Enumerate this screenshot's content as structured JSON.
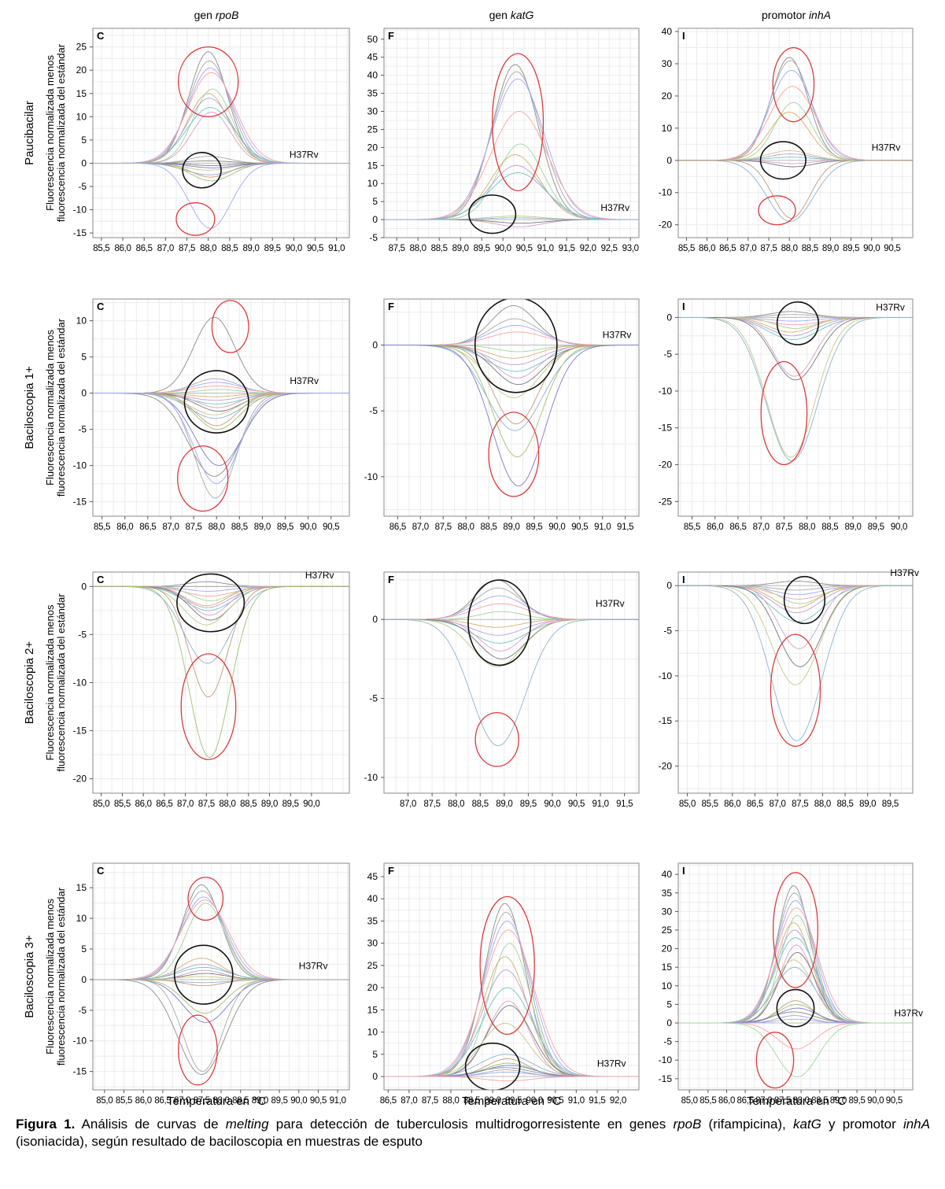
{
  "column_headers": [
    {
      "prefix": "gen ",
      "italic": "rpoB"
    },
    {
      "prefix": "gen ",
      "italic": "katG"
    },
    {
      "prefix": "promotor ",
      "italic": "inhA"
    }
  ],
  "row_headers": [
    "Paucibacilar",
    "Baciloscopia 1+",
    "Baciloscopia 2+",
    "Baciloscopia 3+"
  ],
  "ylabel_line1": "Fluorescencia normalizada menos",
  "ylabel_line2": "fluorescencia normalizada del estándar",
  "xlabel": "Temperatura en °C",
  "reference_label": "H37Rv",
  "caption": {
    "bold": "Figura 1.",
    "parts": [
      {
        "t": " Análisis de curvas de ",
        "i": false
      },
      {
        "t": "melting",
        "i": true
      },
      {
        "t": " para detección de tuberculosis multidrogorresistente en genes ",
        "i": false
      },
      {
        "t": "rpoB",
        "i": true
      },
      {
        "t": " (rifampicina), ",
        "i": false
      },
      {
        "t": "katG",
        "i": true
      },
      {
        "t": " y promotor ",
        "i": false
      },
      {
        "t": "inhA",
        "i": true
      },
      {
        "t": " (isoniacida), según resultado de baciloscopia en muestras de esputo",
        "i": false
      }
    ]
  },
  "colors": {
    "red_circle": "#e0393a",
    "black_circle": "#111111",
    "grid": "#ececec",
    "frame": "#888888"
  },
  "chart_data": [
    {
      "type": "line",
      "panel_letter": "C",
      "row": "Paucibacilar",
      "column": "gen rpoB",
      "xlim": [
        85.3,
        91.3
      ],
      "ylim": [
        -16,
        29
      ],
      "xticks": [
        "85,5",
        "86,0",
        "86,5",
        "87,0",
        "87,5",
        "88,0",
        "88,5",
        "89,0",
        "89,5",
        "90,0",
        "90,5",
        "91,0"
      ],
      "yticks": [
        25,
        20,
        15,
        10,
        5,
        0,
        -5,
        -10,
        -15
      ],
      "center": 88.05,
      "width": 0.5,
      "peak_heights": [
        24,
        22,
        20.5,
        19.5,
        16,
        15,
        14,
        12,
        11,
        -0.5,
        -1.5,
        -2.5,
        -3,
        -3.8,
        -1,
        0.5,
        1.5,
        -14
      ],
      "reference": {
        "x": 89.9,
        "y": 0.5
      },
      "circles": [
        {
          "color": "red",
          "cx": 88.0,
          "cy": 17.5,
          "rx": 0.7,
          "ry": 7.5
        },
        {
          "color": "black",
          "cx": 87.85,
          "cy": -1.5,
          "rx": 0.45,
          "ry": 3.8
        },
        {
          "color": "red",
          "cx": 87.7,
          "cy": -12,
          "rx": 0.45,
          "ry": 3.5
        }
      ]
    },
    {
      "type": "line",
      "panel_letter": "F",
      "row": "Paucibacilar",
      "column": "gen katG",
      "xlim": [
        87.2,
        93.2
      ],
      "ylim": [
        -5,
        53
      ],
      "xticks": [
        "87,5",
        "88,0",
        "88,5",
        "89,0",
        "89,5",
        "90,0",
        "90,5",
        "91,0",
        "91,5",
        "92,0",
        "92,5",
        "93,0"
      ],
      "yticks": [
        50,
        45,
        40,
        35,
        30,
        25,
        20,
        15,
        10,
        5,
        0,
        -5
      ],
      "center": 90.35,
      "width": 0.6,
      "peak_heights": [
        43,
        41,
        39,
        30,
        21,
        18,
        15,
        13,
        -2,
        -1,
        1,
        0.5
      ],
      "reference": {
        "x": 92.3,
        "y": 1.5
      },
      "circles": [
        {
          "color": "red",
          "cx": 90.35,
          "cy": 27,
          "rx": 0.6,
          "ry": 19
        },
        {
          "color": "black",
          "cx": 89.75,
          "cy": 1.5,
          "rx": 0.55,
          "ry": 5.3
        }
      ]
    },
    {
      "type": "line",
      "panel_letter": "I",
      "row": "Paucibacilar",
      "column": "promotor inhA",
      "xlim": [
        85.3,
        91.0
      ],
      "ylim": [
        -24,
        41
      ],
      "xticks": [
        "85,5",
        "86,0",
        "86,5",
        "87,0",
        "87,5",
        "88,0",
        "88,5",
        "89,0",
        "89,5",
        "90,0",
        "90,5"
      ],
      "yticks": [
        40,
        30,
        20,
        10,
        0,
        -10,
        -20
      ],
      "center": 88.05,
      "width": 0.5,
      "peak_heights": [
        32,
        31,
        28,
        23,
        18,
        15,
        2,
        1,
        -1,
        -2,
        3,
        -19,
        -18
      ],
      "reference": {
        "x": 90.0,
        "y": 2
      },
      "circles": [
        {
          "color": "red",
          "cx": 88.1,
          "cy": 23.5,
          "rx": 0.5,
          "ry": 11.5
        },
        {
          "color": "black",
          "cx": 87.85,
          "cy": 0,
          "rx": 0.55,
          "ry": 5.8
        },
        {
          "color": "red",
          "cx": 87.7,
          "cy": -15.5,
          "rx": 0.45,
          "ry": 4.5
        }
      ]
    },
    {
      "type": "line",
      "panel_letter": "C",
      "row": "Baciloscopia 1+",
      "column": "gen rpoB",
      "xlim": [
        85.3,
        90.9
      ],
      "ylim": [
        -17,
        13
      ],
      "xticks": [
        "85,5",
        "86,0",
        "86,5",
        "87,0",
        "87,5",
        "88,0",
        "88,5",
        "89,0",
        "89,5",
        "90,0",
        "90,5"
      ],
      "yticks": [
        10,
        5,
        0,
        -5,
        -10,
        -15
      ],
      "center": 88.0,
      "width": 0.5,
      "peak_heights": [
        10.5,
        2,
        1.5,
        1,
        0.5,
        -0.5,
        -1,
        -1.5,
        -2,
        -2.5,
        -3,
        -3.5,
        -4.5,
        -5,
        -10,
        -11.5,
        -14.5,
        -12.5
      ],
      "reference": {
        "x": 89.6,
        "y": 0.8
      },
      "circles": [
        {
          "color": "red",
          "cx": 88.3,
          "cy": 9.2,
          "rx": 0.4,
          "ry": 3.6
        },
        {
          "color": "black",
          "cx": 88.0,
          "cy": -1.2,
          "rx": 0.7,
          "ry": 4.3
        },
        {
          "color": "red",
          "cx": 87.7,
          "cy": -11.8,
          "rx": 0.55,
          "ry": 4.5
        }
      ]
    },
    {
      "type": "line",
      "panel_letter": "F",
      "row": "Baciloscopia 1+",
      "column": "gen katG",
      "xlim": [
        86.2,
        91.8
      ],
      "ylim": [
        -13,
        3.5
      ],
      "xticks": [
        "86,5",
        "87,0",
        "87,5",
        "88,0",
        "88,5",
        "89,0",
        "89,5",
        "90,0",
        "90,5",
        "91,0",
        "91,5"
      ],
      "yticks": [
        0,
        -5,
        -10
      ],
      "center": 89.1,
      "width": 0.55,
      "peak_heights": [
        3,
        2,
        1.5,
        1,
        -0.5,
        -1,
        -1.5,
        -2,
        -2.5,
        -3,
        -4,
        -6.5,
        -6,
        -8.5,
        -10.7
      ],
      "reference": {
        "x": 91.0,
        "y": 0.3
      },
      "circles": [
        {
          "color": "black",
          "cx": 89.1,
          "cy": 0,
          "rx": 0.9,
          "ry": 3.6
        },
        {
          "color": "red",
          "cx": 89.05,
          "cy": -8.3,
          "rx": 0.55,
          "ry": 3.2
        }
      ]
    },
    {
      "type": "line",
      "panel_letter": "I",
      "row": "Baciloscopia 1+",
      "column": "promotor inhA",
      "xlim": [
        85.2,
        90.3
      ],
      "ylim": [
        -27,
        2.5
      ],
      "xticks": [
        "85,5",
        "86,0",
        "86,5",
        "87,0",
        "87,5",
        "88,0",
        "88,5",
        "89,0",
        "89,5",
        "90,0"
      ],
      "yticks": [
        0,
        -5,
        -10,
        -15,
        -20,
        -25
      ],
      "center": 87.7,
      "width": 0.5,
      "peak_heights": [
        0.8,
        0.4,
        -0.5,
        -1,
        -1.5,
        -2,
        -2.5,
        -3,
        -8,
        -8.5,
        -19,
        -19.5
      ],
      "reference": {
        "x": 89.5,
        "y": 0.5
      },
      "circles": [
        {
          "color": "black",
          "cx": 87.8,
          "cy": -0.8,
          "rx": 0.45,
          "ry": 2.9
        },
        {
          "color": "red",
          "cx": 87.5,
          "cy": -13,
          "rx": 0.5,
          "ry": 7
        }
      ]
    },
    {
      "type": "line",
      "panel_letter": "C",
      "row": "Baciloscopia 2+",
      "column": "gen rpoB",
      "xlim": [
        84.8,
        90.9
      ],
      "ylim": [
        -21.5,
        1.5
      ],
      "xticks": [
        "85,0",
        "85,5",
        "86,0",
        "86,5",
        "87,0",
        "87,5",
        "88,0",
        "88,5",
        "89,0",
        "89,5",
        "90,0"
      ],
      "yticks": [
        0,
        -5,
        -10,
        -15,
        -20
      ],
      "center": 87.55,
      "width": 0.5,
      "peak_heights": [
        0.5,
        0,
        -0.5,
        -1,
        -1.5,
        -2,
        -2.2,
        -2.5,
        -3,
        -3.5,
        -4,
        -8,
        -11.5,
        -17.8
      ],
      "reference": {
        "x": 89.85,
        "y": 0.5
      },
      "circles": [
        {
          "color": "black",
          "cx": 87.6,
          "cy": -1.7,
          "rx": 0.8,
          "ry": 3
        },
        {
          "color": "red",
          "cx": 87.55,
          "cy": -12.5,
          "rx": 0.65,
          "ry": 5.5
        }
      ]
    },
    {
      "type": "line",
      "panel_letter": "F",
      "row": "Baciloscopia 2+",
      "column": "gen katG",
      "xlim": [
        86.5,
        91.8
      ],
      "ylim": [
        -11,
        3
      ],
      "xticks": [
        "87,0",
        "87,5",
        "88,0",
        "88,5",
        "89,0",
        "89,5",
        "90,0",
        "90,5",
        "91,0",
        "91,5"
      ],
      "yticks": [
        0,
        -5,
        -10
      ],
      "center": 88.9,
      "width": 0.5,
      "peak_heights": [
        2.5,
        2,
        1.5,
        1,
        0.5,
        -0.5,
        -1,
        -1.5,
        -2,
        -2.5,
        -3,
        -8
      ],
      "reference": {
        "x": 90.9,
        "y": 0.6
      },
      "circles": [
        {
          "color": "black",
          "cx": 88.9,
          "cy": -0.2,
          "rx": 0.65,
          "ry": 2.7
        },
        {
          "color": "red",
          "cx": 88.85,
          "cy": -7.6,
          "rx": 0.45,
          "ry": 1.7
        }
      ]
    },
    {
      "type": "line",
      "panel_letter": "I",
      "row": "Baciloscopia 2+",
      "column": "promotor inhA",
      "xlim": [
        84.8,
        90.0
      ],
      "ylim": [
        -23,
        1.5
      ],
      "xticks": [
        "85,0",
        "85,5",
        "86,0",
        "86,5",
        "87,0",
        "87,5",
        "88,0",
        "88,5",
        "89,0",
        "89,5"
      ],
      "yticks": [
        0,
        -5,
        -10,
        -15,
        -20
      ],
      "center": 87.45,
      "width": 0.5,
      "peak_heights": [
        0.5,
        -0.5,
        -1,
        -1.5,
        -2,
        -2.5,
        -3,
        -4,
        -7,
        -9,
        -11,
        -17.2
      ],
      "reference": {
        "x": 89.5,
        "y": 0.7
      },
      "circles": [
        {
          "color": "black",
          "cx": 87.6,
          "cy": -1.6,
          "rx": 0.45,
          "ry": 2.6
        },
        {
          "color": "red",
          "cx": 87.4,
          "cy": -11.6,
          "rx": 0.55,
          "ry": 6.2
        }
      ]
    },
    {
      "type": "line",
      "panel_letter": "C",
      "row": "Baciloscopia 3+",
      "column": "gen rpoB",
      "xlim": [
        84.7,
        91.3
      ],
      "ylim": [
        -18,
        19
      ],
      "xticks": [
        "85,0",
        "85,5",
        "86,0",
        "86,5",
        "87,0",
        "87,5",
        "88,0",
        "88,5",
        "89,0",
        "89,5",
        "90,0",
        "90,5",
        "91,0"
      ],
      "yticks": [
        15,
        10,
        5,
        0,
        -5,
        -10,
        -15
      ],
      "center": 87.55,
      "width": 0.55,
      "peak_heights": [
        15.5,
        14.5,
        13.5,
        13,
        12.5,
        3.5,
        2.5,
        2,
        1.5,
        1,
        0.5,
        -0.5,
        -1,
        -5.5,
        -7,
        -15.5,
        -15
      ],
      "reference": {
        "x": 90.0,
        "y": 1.2
      },
      "circles": [
        {
          "color": "red",
          "cx": 87.6,
          "cy": 13.2,
          "rx": 0.45,
          "ry": 3.5
        },
        {
          "color": "black",
          "cx": 87.55,
          "cy": 0.8,
          "rx": 0.75,
          "ry": 4.8
        },
        {
          "color": "red",
          "cx": 87.4,
          "cy": -11.5,
          "rx": 0.5,
          "ry": 5.7
        }
      ]
    },
    {
      "type": "line",
      "panel_letter": "F",
      "row": "Baciloscopia 3+",
      "column": "gen katG",
      "xlim": [
        86.4,
        92.5
      ],
      "ylim": [
        -3,
        48
      ],
      "xticks": [
        "86,5",
        "87,0",
        "87,5",
        "88,0",
        "88,5",
        "89,0",
        "89,5",
        "90,0",
        "90,5",
        "91,0",
        "91,5",
        "92,0"
      ],
      "yticks": [
        45,
        40,
        35,
        30,
        25,
        20,
        15,
        10,
        5,
        0
      ],
      "center": 89.35,
      "width": 0.55,
      "peak_heights": [
        39,
        37,
        35,
        33,
        30,
        27,
        24,
        20,
        17,
        16,
        12,
        5,
        4,
        3,
        2.5,
        2,
        1.5,
        1,
        -1
      ],
      "reference": {
        "x": 91.5,
        "y": 1.5
      },
      "circles": [
        {
          "color": "red",
          "cx": 89.35,
          "cy": 25,
          "rx": 0.65,
          "ry": 15.5
        },
        {
          "color": "black",
          "cx": 89.0,
          "cy": 2.2,
          "rx": 0.65,
          "ry": 5.3
        }
      ]
    },
    {
      "type": "line",
      "panel_letter": "I",
      "row": "Baciloscopia 3+",
      "column": "promotor inhA",
      "xlim": [
        84.7,
        91.0
      ],
      "ylim": [
        -18,
        43
      ],
      "xticks": [
        "85,0",
        "85,5",
        "86,0",
        "86,5",
        "87,0",
        "87,5",
        "88,0",
        "88,5",
        "89,0",
        "89,5",
        "90,0",
        "90,5"
      ],
      "yticks": [
        40,
        35,
        30,
        25,
        20,
        15,
        10,
        5,
        0,
        -5,
        -10,
        -15
      ],
      "center": 87.85,
      "width": 0.5,
      "peak_heights": [
        37,
        35,
        33,
        31,
        29,
        27,
        25,
        23,
        21,
        19,
        17,
        15,
        6,
        5,
        4,
        3,
        2,
        1,
        -7,
        -14.5
      ],
      "reference": {
        "x": 90.5,
        "y": 1
      },
      "circles": [
        {
          "color": "red",
          "cx": 87.85,
          "cy": 25,
          "rx": 0.6,
          "ry": 15.5
        },
        {
          "color": "black",
          "cx": 87.85,
          "cy": 4,
          "rx": 0.5,
          "ry": 5
        },
        {
          "color": "red",
          "cx": 87.3,
          "cy": -10,
          "rx": 0.5,
          "ry": 7.5
        }
      ]
    }
  ]
}
